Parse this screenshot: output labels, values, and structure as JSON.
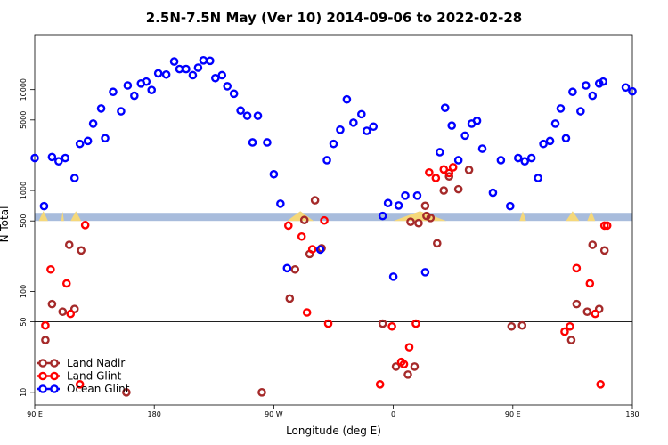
{
  "chart_data": {
    "type": "scatter",
    "title": "2.5N-7.5N May (Ver 10)   2014-09-06 to 2022-02-28",
    "xlabel": "Longitude (deg E)",
    "ylabel": "N Total",
    "y_scale": "log",
    "ylim": [
      7.5,
      35000
    ],
    "xlim": [
      90,
      540
    ],
    "x_ticks": [
      {
        "value": 90,
        "label": "90 E"
      },
      {
        "value": 180,
        "label": "180"
      },
      {
        "value": 270,
        "label": "90 W"
      },
      {
        "value": 360,
        "label": "0"
      },
      {
        "value": 450,
        "label": "90 E"
      },
      {
        "value": 540,
        "label": "180"
      }
    ],
    "y_ticks": [
      {
        "value": 10,
        "label": "10"
      },
      {
        "value": 50,
        "label": "50"
      },
      {
        "value": 100,
        "label": "100"
      },
      {
        "value": 500,
        "label": "500"
      },
      {
        "value": 1000,
        "label": "1000"
      },
      {
        "value": 5000,
        "label": "5000"
      },
      {
        "value": 10000,
        "label": "10000"
      }
    ],
    "reference_line": 50,
    "band": {
      "y_low": 500,
      "y_high": 600,
      "color": "#a8bcdc"
    },
    "land_hump_color": "#f5d87a",
    "legend": {
      "position": "bottom-left"
    },
    "series": [
      {
        "name": "Land Nadir",
        "color": "#a52a2a",
        "points": [
          [
            98,
            33
          ],
          [
            103,
            75
          ],
          [
            111,
            63
          ],
          [
            116,
            290
          ],
          [
            120,
            67
          ],
          [
            125,
            255
          ],
          [
            159,
            10
          ],
          [
            261,
            10
          ],
          [
            282,
            85
          ],
          [
            286,
            165
          ],
          [
            293,
            510
          ],
          [
            297,
            235
          ],
          [
            301,
            800
          ],
          [
            306,
            268
          ],
          [
            384,
            705
          ],
          [
            379,
            475
          ],
          [
            373,
            490
          ],
          [
            352,
            48
          ],
          [
            362,
            18
          ],
          [
            371,
            15
          ],
          [
            376,
            18
          ],
          [
            385,
            560
          ],
          [
            398,
            1000
          ],
          [
            388,
            535
          ],
          [
            393,
            300
          ],
          [
            402,
            1380
          ],
          [
            409,
            1030
          ],
          [
            417,
            1600
          ],
          [
            449,
            45
          ],
          [
            457,
            46
          ],
          [
            494,
            33
          ],
          [
            498,
            75
          ],
          [
            506,
            63
          ],
          [
            510,
            290
          ],
          [
            515,
            67
          ],
          [
            519,
            255
          ]
        ]
      },
      {
        "name": "Land Glint",
        "color": "#ff0000",
        "points": [
          [
            98,
            46
          ],
          [
            102,
            165
          ],
          [
            114,
            120
          ],
          [
            117,
            60
          ],
          [
            124,
            12
          ],
          [
            128,
            455
          ],
          [
            281,
            450
          ],
          [
            291,
            350
          ],
          [
            295,
            62
          ],
          [
            308,
            505
          ],
          [
            311,
            48
          ],
          [
            299,
            262
          ],
          [
            350,
            12
          ],
          [
            359,
            45
          ],
          [
            372,
            28
          ],
          [
            368,
            19
          ],
          [
            377,
            48
          ],
          [
            387,
            1510
          ],
          [
            392,
            1330
          ],
          [
            398,
            1620
          ],
          [
            402,
            1490
          ],
          [
            405,
            1700
          ],
          [
            366,
            20
          ],
          [
            489,
            40
          ],
          [
            493,
            45
          ],
          [
            498,
            170
          ],
          [
            508,
            120
          ],
          [
            512,
            60
          ],
          [
            516,
            12
          ],
          [
            519,
            450
          ],
          [
            521,
            450
          ]
        ]
      },
      {
        "name": "Ocean Glint",
        "color": "#0000ff",
        "points": [
          [
            90,
            2100
          ],
          [
            97,
            700
          ],
          [
            103,
            2150
          ],
          [
            108,
            1950
          ],
          [
            113,
            2100
          ],
          [
            120,
            1330
          ],
          [
            124,
            2900
          ],
          [
            130,
            3100
          ],
          [
            134,
            4600
          ],
          [
            140,
            6500
          ],
          [
            143,
            3300
          ],
          [
            149,
            9500
          ],
          [
            155,
            6100
          ],
          [
            160,
            11000
          ],
          [
            165,
            8700
          ],
          [
            170,
            11500
          ],
          [
            174,
            12000
          ],
          [
            178,
            9900
          ],
          [
            183,
            14500
          ],
          [
            189,
            14100
          ],
          [
            195,
            19000
          ],
          [
            199,
            16000
          ],
          [
            204,
            16000
          ],
          [
            209,
            13900
          ],
          [
            213,
            16500
          ],
          [
            217,
            19500
          ],
          [
            222,
            19300
          ],
          [
            226,
            13000
          ],
          [
            231,
            13900
          ],
          [
            235,
            10800
          ],
          [
            240,
            9100
          ],
          [
            245,
            6200
          ],
          [
            250,
            5500
          ],
          [
            254,
            3000
          ],
          [
            258,
            5500
          ],
          [
            265,
            3000
          ],
          [
            270,
            1450
          ],
          [
            275,
            740
          ],
          [
            280,
            170
          ],
          [
            305,
            260
          ],
          [
            310,
            2000
          ],
          [
            315,
            2900
          ],
          [
            320,
            4000
          ],
          [
            325,
            8000
          ],
          [
            330,
            4700
          ],
          [
            336,
            5700
          ],
          [
            340,
            3900
          ],
          [
            345,
            4300
          ],
          [
            352,
            560
          ],
          [
            356,
            750
          ],
          [
            360,
            140
          ],
          [
            364,
            710
          ],
          [
            369,
            890
          ],
          [
            378,
            890
          ],
          [
            384,
            155
          ],
          [
            395,
            2400
          ],
          [
            399,
            6600
          ],
          [
            404,
            4400
          ],
          [
            409,
            2000
          ],
          [
            414,
            3500
          ],
          [
            419,
            4600
          ],
          [
            423,
            4900
          ],
          [
            427,
            2600
          ],
          [
            435,
            950
          ],
          [
            441,
            2000
          ],
          [
            448,
            700
          ],
          [
            454,
            2100
          ],
          [
            459,
            1950
          ],
          [
            464,
            2100
          ],
          [
            469,
            1330
          ],
          [
            473,
            2900
          ],
          [
            478,
            3100
          ],
          [
            482,
            4600
          ],
          [
            486,
            6500
          ],
          [
            490,
            3300
          ],
          [
            495,
            9500
          ],
          [
            501,
            6100
          ],
          [
            505,
            11000
          ],
          [
            510,
            8700
          ],
          [
            515,
            11500
          ],
          [
            518,
            12000
          ],
          [
            535,
            10500
          ],
          [
            540,
            9600
          ]
        ]
      }
    ]
  }
}
